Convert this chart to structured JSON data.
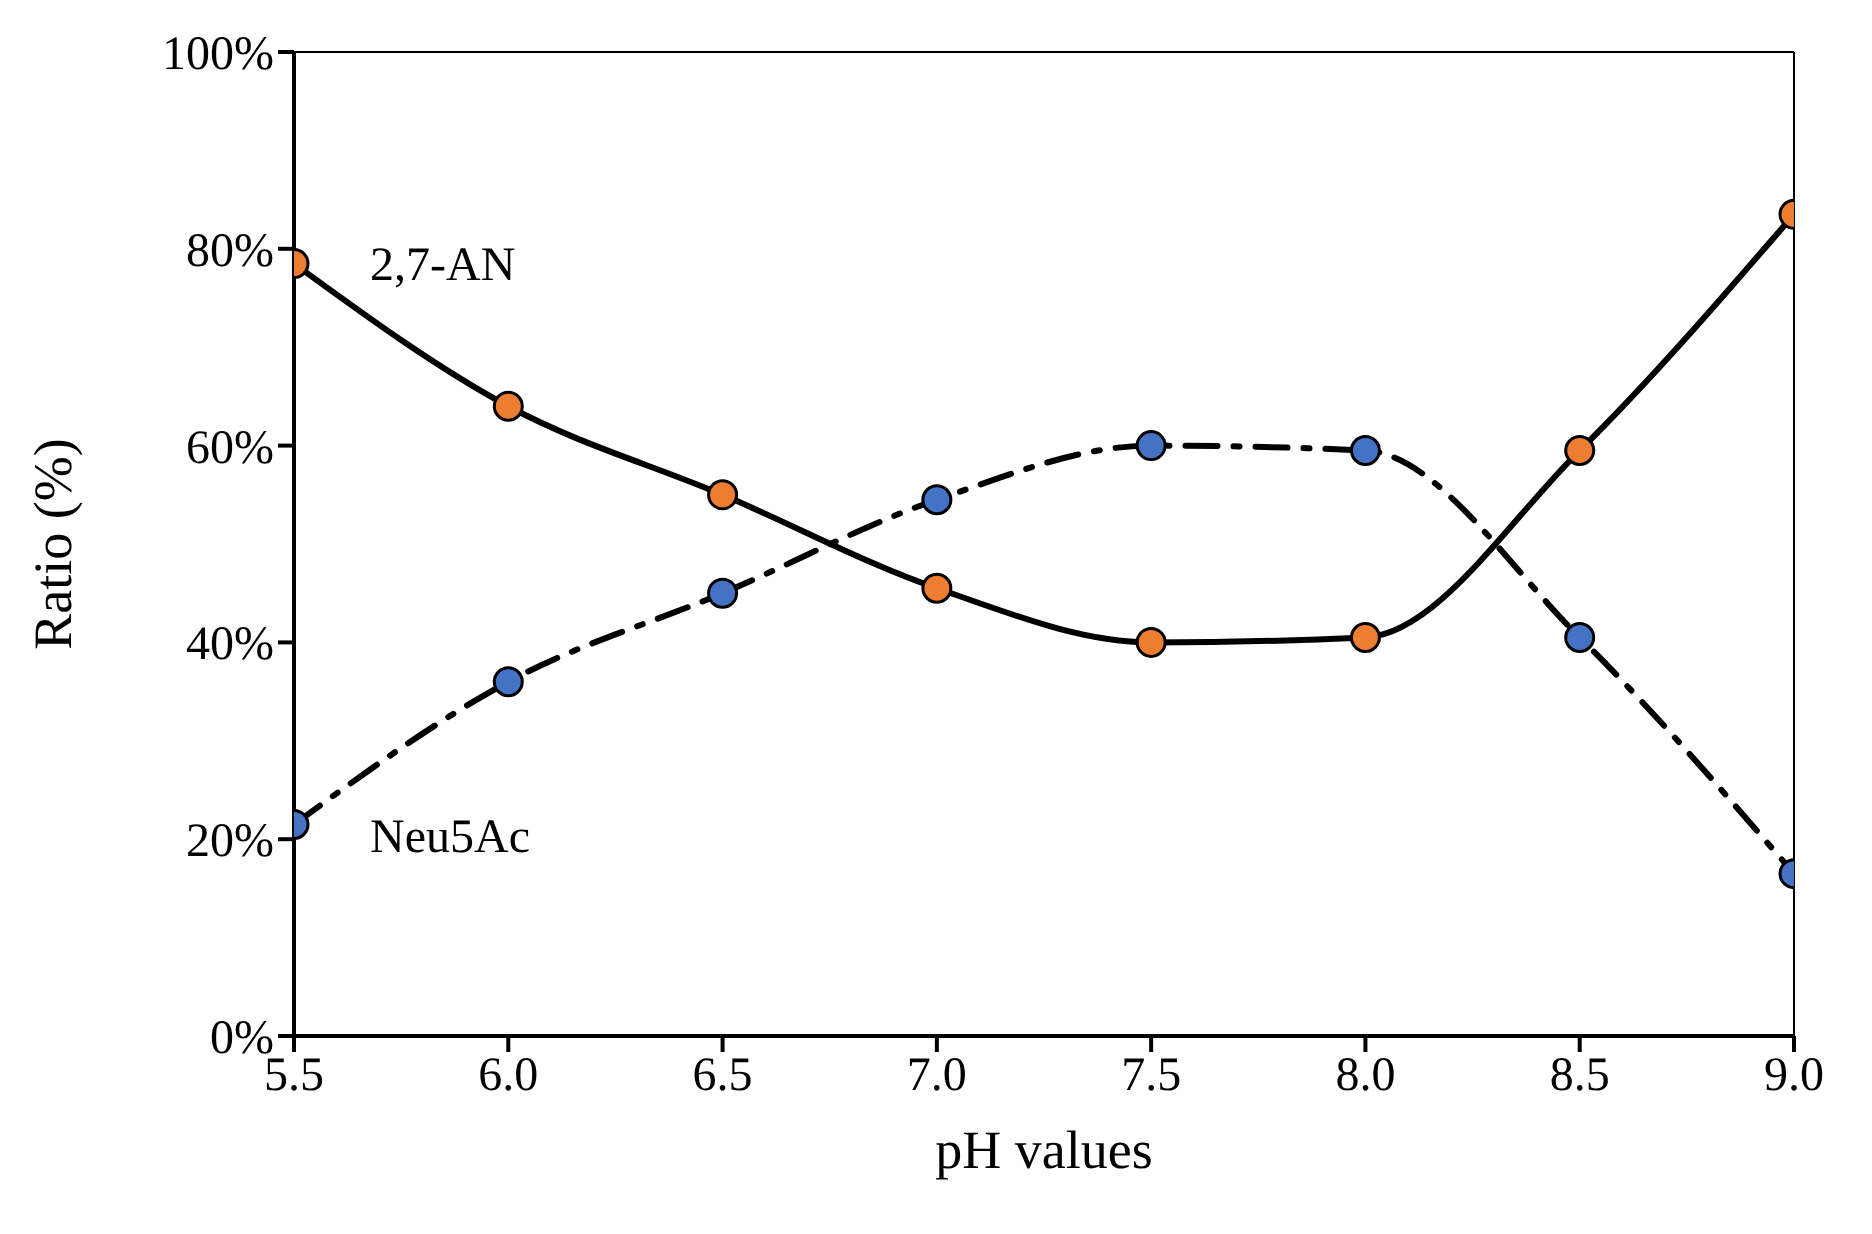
{
  "chart_data": {
    "type": "line",
    "xlabel": "pH values",
    "ylabel": "Ratio (%)",
    "x": [
      5.5,
      6.0,
      6.5,
      7.0,
      7.5,
      8.0,
      8.5,
      9.0
    ],
    "series": [
      {
        "name": "2,7-AN",
        "color": "#ed7d31",
        "line_style": "solid",
        "values": [
          78.5,
          64,
          55,
          45.5,
          40,
          40.5,
          59.5,
          83.5
        ]
      },
      {
        "name": "Neu5Ac",
        "color": "#4472c4",
        "line_style": "dashed",
        "values": [
          21.5,
          36,
          45,
          54.5,
          60,
          59.5,
          40.5,
          16.5
        ]
      }
    ],
    "xlim": [
      5.5,
      9.0
    ],
    "xticks": [
      {
        "value": 5.5,
        "label": "5.5"
      },
      {
        "value": 6,
        "label": "6.0"
      },
      {
        "value": 6.5,
        "label": "6.5"
      },
      {
        "value": 7,
        "label": "7.0"
      },
      {
        "value": 7.5,
        "label": "7.5"
      },
      {
        "value": 8,
        "label": "8.0"
      },
      {
        "value": 8.5,
        "label": "8.5"
      },
      {
        "value": 9,
        "label": "9.0"
      }
    ],
    "ylim": [
      0,
      100
    ],
    "yticks": [
      {
        "value": 0,
        "label": "0%"
      },
      {
        "value": 20,
        "label": "20%"
      },
      {
        "value": 40,
        "label": "40%"
      },
      {
        "value": 60,
        "label": "60%"
      },
      {
        "value": 80,
        "label": "80%"
      },
      {
        "value": 100,
        "label": "100%"
      }
    ],
    "marker": "circle",
    "grid": false
  }
}
